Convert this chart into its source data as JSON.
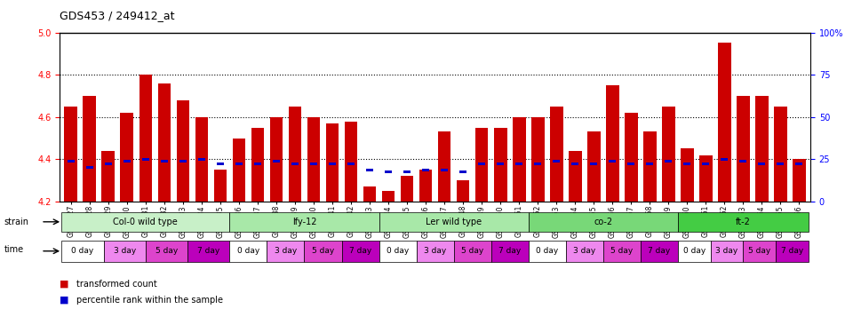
{
  "title": "GDS453 / 249412_at",
  "ylim": [
    4.2,
    5.0
  ],
  "yticks": [
    4.2,
    4.4,
    4.6,
    4.8,
    5.0
  ],
  "right_yticks": [
    0,
    25,
    50,
    75,
    100
  ],
  "right_ylabels": [
    "0",
    "25",
    "50",
    "75",
    "100%"
  ],
  "samples": [
    "GSM8827",
    "GSM8828",
    "GSM8829",
    "GSM8830",
    "GSM8831",
    "GSM8832",
    "GSM8833",
    "GSM8834",
    "GSM8835",
    "GSM8836",
    "GSM8837",
    "GSM8838",
    "GSM8839",
    "GSM8840",
    "GSM8841",
    "GSM8842",
    "GSM8843",
    "GSM8844",
    "GSM8845",
    "GSM8846",
    "GSM8847",
    "GSM8848",
    "GSM8849",
    "GSM8850",
    "GSM8851",
    "GSM8852",
    "GSM8853",
    "GSM8854",
    "GSM8855",
    "GSM8856",
    "GSM8857",
    "GSM8858",
    "GSM8859",
    "GSM8860",
    "GSM8861",
    "GSM8862",
    "GSM8863",
    "GSM8864",
    "GSM8865",
    "GSM8866"
  ],
  "red_values": [
    4.65,
    4.7,
    4.44,
    4.62,
    4.8,
    4.76,
    4.68,
    4.6,
    4.35,
    4.5,
    4.55,
    4.6,
    4.65,
    4.6,
    4.57,
    4.58,
    4.27,
    4.25,
    4.32,
    4.35,
    4.53,
    4.3,
    4.55,
    4.55,
    4.6,
    4.6,
    4.65,
    4.44,
    4.53,
    4.75,
    4.62,
    4.53,
    4.65,
    4.45,
    4.42,
    4.95,
    4.7,
    4.7,
    4.65,
    4.4
  ],
  "blue_values": [
    4.39,
    4.36,
    4.38,
    4.39,
    4.4,
    4.39,
    4.39,
    4.4,
    4.38,
    4.38,
    4.38,
    4.39,
    4.38,
    4.38,
    4.38,
    4.38,
    4.35,
    4.34,
    4.34,
    4.35,
    4.35,
    4.34,
    4.38,
    4.38,
    4.38,
    4.38,
    4.39,
    4.38,
    4.38,
    4.39,
    4.38,
    4.38,
    4.39,
    4.38,
    4.38,
    4.4,
    4.39,
    4.38,
    4.38,
    4.38
  ],
  "strains": [
    {
      "label": "Col-0 wild type",
      "start": 0,
      "end": 8,
      "color": "#ccffcc"
    },
    {
      "label": "lfy-12",
      "start": 9,
      "end": 23,
      "color": "#99ff99"
    },
    {
      "label": "Ler wild type",
      "start": 9,
      "end": 23,
      "color": "#99ff99"
    },
    {
      "label": "co-2",
      "start": 24,
      "end": 33,
      "color": "#66cc66"
    },
    {
      "label": "ft-2",
      "start": 34,
      "end": 39,
      "color": "#44bb44"
    }
  ],
  "strain_groups": [
    {
      "label": "Col-0 wild type",
      "start": 0,
      "end": 9,
      "color": "#ccffcc"
    },
    {
      "label": "lfy-12",
      "start": 9,
      "end": 24,
      "color": "#99ff99"
    },
    {
      "label": "Ler wild type",
      "start": 9,
      "end": 24,
      "color": "#99ff99"
    },
    {
      "label": "co-2",
      "start": 24,
      "end": 34,
      "color": "#66cc66"
    },
    {
      "label": "ft-2",
      "start": 34,
      "end": 40,
      "color": "#44bb44"
    }
  ],
  "time_labels": [
    "0 day",
    "3 day",
    "5 day",
    "7 day"
  ],
  "time_colors": [
    "white",
    "#ee82ee",
    "#dd44dd",
    "#cc00cc"
  ],
  "dotted_lines": [
    4.4,
    4.6,
    4.8
  ],
  "bar_color": "#cc0000",
  "blue_color": "#0000cc",
  "bar_width": 0.7
}
